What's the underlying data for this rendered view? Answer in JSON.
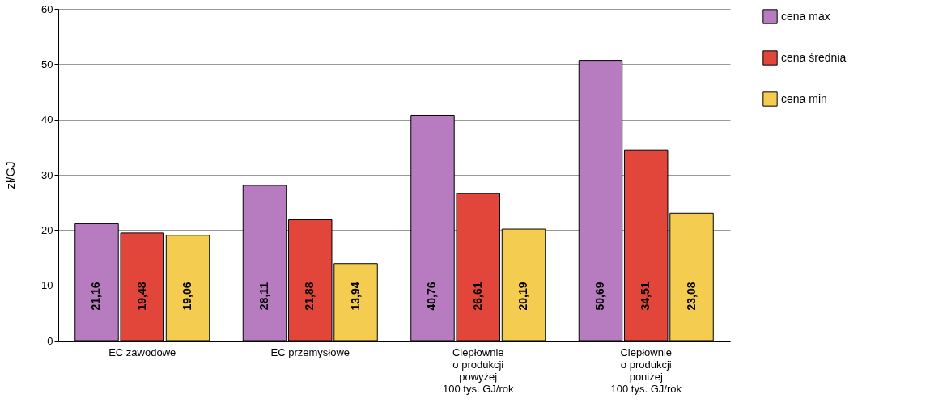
{
  "chart_data": {
    "type": "bar",
    "ylabel": "zł/GJ",
    "categories": [
      "EC zawodowe",
      "EC przemysłowe",
      "Ciepłownie\no produkcji\npowyżej\n100 tys. GJ/rok",
      "Ciepłownie\no produkcji\nponiżej\n100 tys. GJ/rok"
    ],
    "series": [
      {
        "name": "cena max",
        "color": "#b77cc0",
        "values": [
          21.16,
          28.11,
          40.76,
          50.69
        ],
        "value_labels": [
          "21,16",
          "28,11",
          "40,76",
          "50,69"
        ]
      },
      {
        "name": "cena średnia",
        "color": "#e2453a",
        "values": [
          19.48,
          21.88,
          26.61,
          34.51
        ],
        "value_labels": [
          "19,48",
          "21,88",
          "26,61",
          "34,51"
        ]
      },
      {
        "name": "cena min",
        "color": "#f4cd50",
        "values": [
          19.06,
          13.94,
          20.19,
          23.08
        ],
        "value_labels": [
          "19,06",
          "13,94",
          "20,19",
          "23,08"
        ]
      }
    ],
    "ylim": [
      0,
      60
    ],
    "yticks": [
      0,
      10,
      20,
      30,
      40,
      50,
      60
    ],
    "grid": "y",
    "legend": "right"
  }
}
